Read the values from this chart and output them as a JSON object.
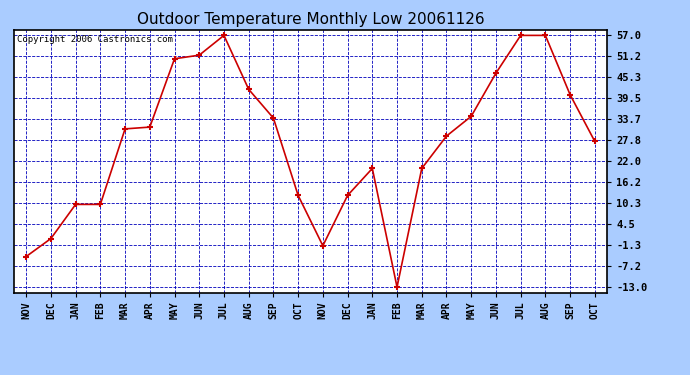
{
  "title": "Outdoor Temperature Monthly Low 20061126",
  "copyright": "Copyright 2006 Castronics.com",
  "categories": [
    "NOV",
    "DEC",
    "JAN",
    "FEB",
    "MAR",
    "APR",
    "MAY",
    "JUN",
    "JUL",
    "AUG",
    "SEP",
    "OCT",
    "NOV",
    "DEC",
    "JAN",
    "FEB",
    "MAR",
    "APR",
    "MAY",
    "JUN",
    "JUL",
    "AUG",
    "SEP",
    "OCT"
  ],
  "values": [
    -4.5,
    0.5,
    10.0,
    10.0,
    31.0,
    31.5,
    50.5,
    51.5,
    57.0,
    42.0,
    34.0,
    12.5,
    -1.5,
    12.5,
    20.0,
    -13.0,
    20.0,
    29.0,
    34.5,
    46.5,
    57.0,
    57.0,
    40.5,
    27.5
  ],
  "line_color": "#cc0000",
  "marker_color": "#cc0000",
  "outer_bg_color": "#aaccff",
  "plot_bg_color": "#ffffff",
  "grid_color": "#0000bb",
  "title_color": "#000000",
  "border_color": "#000000",
  "yticks": [
    57.0,
    51.2,
    45.3,
    39.5,
    33.7,
    27.8,
    22.0,
    16.2,
    10.3,
    4.5,
    -1.3,
    -7.2,
    -13.0
  ],
  "ymin": -13.0,
  "ymax": 57.0
}
